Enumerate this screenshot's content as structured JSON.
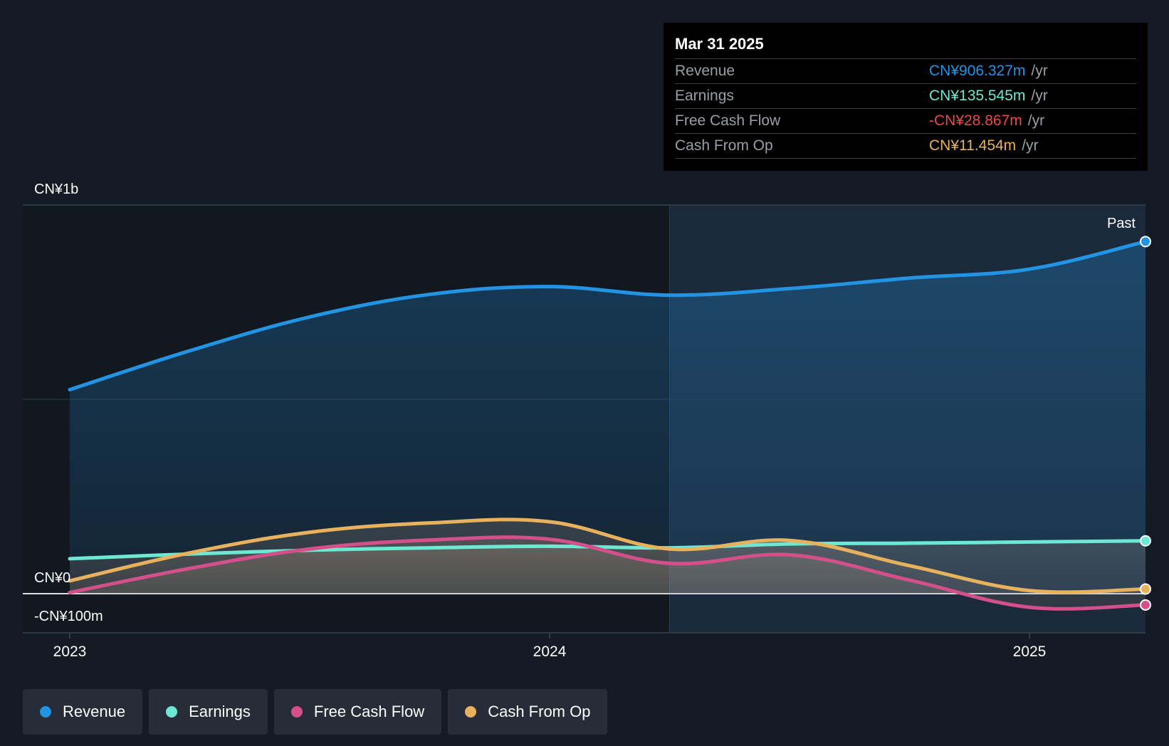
{
  "colors": {
    "revenue": "#2394e4",
    "earnings": "#6de8d2",
    "free_cash_flow": "#d4508a",
    "cash_from_op": "#e7b15e",
    "negative": "#ed4747"
  },
  "tooltip": {
    "date": "Mar 31 2025",
    "rows": [
      {
        "label": "Revenue",
        "value": "CN¥906.327m",
        "unit": "/yr"
      },
      {
        "label": "Earnings",
        "value": "CN¥135.545m",
        "unit": "/yr"
      },
      {
        "label": "Free Cash Flow",
        "value": "-CN¥28.867m",
        "unit": "/yr"
      },
      {
        "label": "Cash From Op",
        "value": "CN¥11.454m",
        "unit": "/yr"
      }
    ]
  },
  "legend": [
    {
      "label": "Revenue",
      "icon": "revenue-dot-icon"
    },
    {
      "label": "Earnings",
      "icon": "earnings-dot-icon"
    },
    {
      "label": "Free Cash Flow",
      "icon": "free-cash-flow-dot-icon"
    },
    {
      "label": "Cash From Op",
      "icon": "cash-from-op-dot-icon"
    }
  ],
  "chart_data": {
    "type": "area",
    "y_unit": "CN¥ millions",
    "ylim": [
      -100,
      1000
    ],
    "y_tick_labels": [
      {
        "value": 1000,
        "label": "CN¥1b"
      },
      {
        "value": 0,
        "label": "CN¥0"
      },
      {
        "value": -100,
        "label": "-CN¥100m"
      }
    ],
    "x_ticks": [
      2023,
      2024,
      2025
    ],
    "x_range": [
      2022.95,
      2025.25
    ],
    "past_label": "Past",
    "past_from": 2024.25,
    "grid": true,
    "series": [
      {
        "name": "Revenue",
        "key": "revenue",
        "x": [
          2023.0,
          2023.25,
          2023.5,
          2023.75,
          2024.0,
          2024.25,
          2024.5,
          2024.75,
          2025.0,
          2025.25
        ],
        "y": [
          525,
          625,
          712,
          770,
          790,
          768,
          785,
          812,
          835,
          906
        ]
      },
      {
        "name": "Earnings",
        "key": "earnings",
        "x": [
          2023.0,
          2023.25,
          2023.5,
          2023.75,
          2024.0,
          2024.25,
          2024.5,
          2024.75,
          2025.0,
          2025.25
        ],
        "y": [
          90,
          102,
          112,
          118,
          122,
          118,
          128,
          130,
          133,
          136
        ]
      },
      {
        "name": "Free Cash Flow",
        "key": "free_cash_flow",
        "x": [
          2023.0,
          2023.25,
          2023.5,
          2023.75,
          2024.0,
          2024.25,
          2024.5,
          2024.75,
          2025.0,
          2025.25
        ],
        "y": [
          3,
          65,
          115,
          138,
          140,
          78,
          100,
          35,
          -35,
          -29
        ]
      },
      {
        "name": "Cash From Op",
        "key": "cash_from_op",
        "x": [
          2023.0,
          2023.25,
          2023.5,
          2023.75,
          2024.0,
          2024.25,
          2024.5,
          2024.75,
          2025.0,
          2025.25
        ],
        "y": [
          33,
          105,
          158,
          182,
          185,
          115,
          137,
          72,
          8,
          12
        ]
      }
    ]
  }
}
